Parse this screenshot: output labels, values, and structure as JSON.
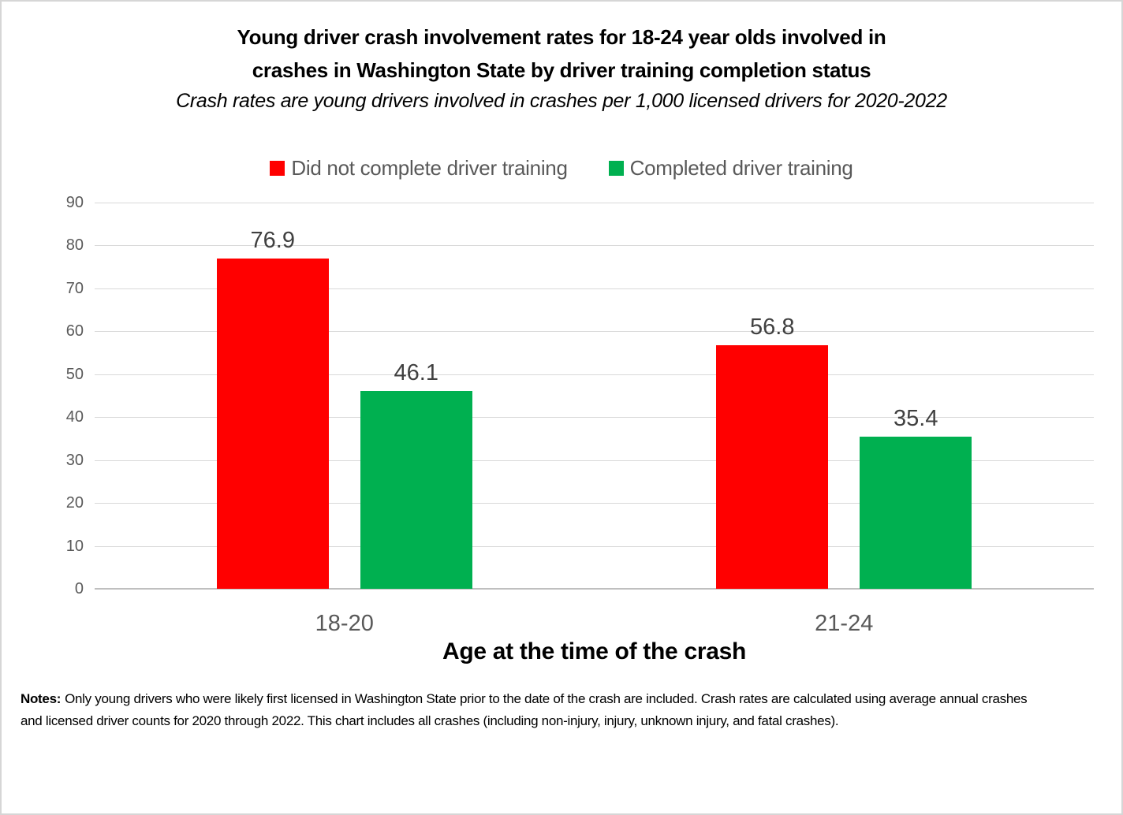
{
  "title": {
    "line1": "Young driver crash involvement rates for 18-24 year olds involved in",
    "line2": "crashes in Washington State by driver training completion status"
  },
  "subtitle": "Crash rates are young drivers involved in crashes per 1,000 licensed drivers for 2020-2022",
  "legend": [
    {
      "label": "Did not complete driver training",
      "color": "#ff0000"
    },
    {
      "label": "Completed driver training",
      "color": "#00b050"
    }
  ],
  "notes": {
    "label": "Notes:",
    "line1": "Only young drivers who were likely first licensed in Washington State prior to the date of the crash are included.  Crash rates are calculated using average annual crashes",
    "line2": "and licensed driver counts for 2020 through 2022. This chart includes all crashes (including non-injury, injury, unknown injury, and fatal crashes)."
  },
  "chart_data": {
    "type": "bar",
    "categories": [
      "18-20",
      "21-24"
    ],
    "series": [
      {
        "name": "Did not complete driver training",
        "color": "#ff0000",
        "values": [
          76.9,
          56.8
        ]
      },
      {
        "name": "Completed driver training",
        "color": "#00b050",
        "values": [
          46.1,
          35.4
        ]
      }
    ],
    "title": "Young driver crash involvement rates for 18-24 year olds involved in crashes in Washington State by driver training completion status",
    "subtitle": "Crash rates are young drivers involved in crashes per 1,000 licensed drivers for 2020-2022",
    "xlabel": "Age at the time of the crash",
    "ylabel": "",
    "ylim": [
      0,
      90
    ],
    "ytick_step": 10,
    "grid": true,
    "legend_position": "top",
    "colors": {
      "gridline": "#d9d9d9",
      "baseline": "#bfbfbf",
      "axis_text": "#595959",
      "value_label_text": "#404040",
      "title_text": "#000000"
    }
  }
}
